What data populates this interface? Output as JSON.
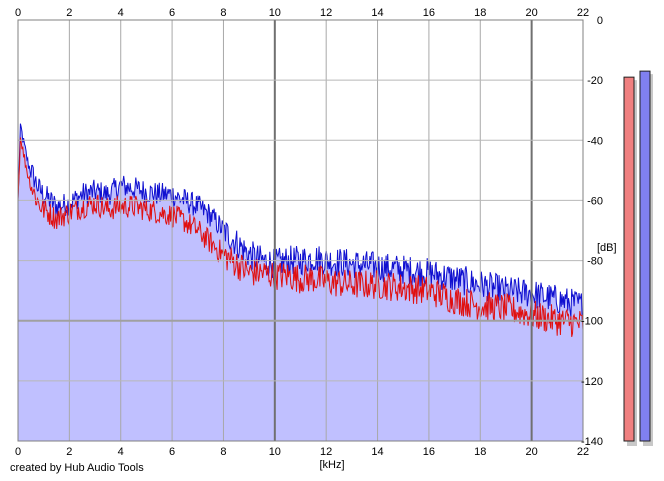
{
  "chart_data": {
    "type": "line",
    "xlabel": "[kHz]",
    "ylabel": "[dB]",
    "xlim": [
      0,
      22
    ],
    "ylim": [
      -140,
      0
    ],
    "x_ticks": [
      0,
      2,
      4,
      6,
      8,
      10,
      12,
      14,
      16,
      18,
      20,
      22
    ],
    "y_ticks": [
      0,
      -20,
      -40,
      -60,
      -80,
      -100,
      -120,
      -140
    ],
    "x_tick_labels": [
      "0",
      "2",
      "4",
      "6",
      "8",
      "10",
      "12",
      "14",
      "16",
      "18",
      "20",
      "22"
    ],
    "y_tick_labels": [
      "0",
      "-20",
      "-40",
      "-60",
      "-80",
      "-100",
      "-120",
      "-140"
    ],
    "grid": true,
    "series": [
      {
        "color": "#1010d0",
        "fill": "#c0c0ff",
        "points": [
          [
            0,
            -60
          ],
          [
            0.1,
            -35
          ],
          [
            0.2,
            -40
          ],
          [
            0.4,
            -48
          ],
          [
            0.6,
            -52
          ],
          [
            0.8,
            -56
          ],
          [
            1.0,
            -58
          ],
          [
            1.5,
            -62
          ],
          [
            2.0,
            -61
          ],
          [
            2.5,
            -58
          ],
          [
            3.0,
            -57
          ],
          [
            3.5,
            -58
          ],
          [
            4.0,
            -55
          ],
          [
            4.5,
            -56
          ],
          [
            5.0,
            -57
          ],
          [
            5.5,
            -58
          ],
          [
            6.0,
            -58
          ],
          [
            6.5,
            -60
          ],
          [
            7.0,
            -62
          ],
          [
            7.5,
            -65
          ],
          [
            8.0,
            -70
          ],
          [
            8.5,
            -74
          ],
          [
            9.0,
            -78
          ],
          [
            9.5,
            -80
          ],
          [
            10.0,
            -81
          ],
          [
            10.5,
            -80
          ],
          [
            11.0,
            -80
          ],
          [
            11.5,
            -79
          ],
          [
            12.0,
            -80
          ],
          [
            13.0,
            -81
          ],
          [
            14.0,
            -82
          ],
          [
            15.0,
            -83
          ],
          [
            16.0,
            -84
          ],
          [
            17.0,
            -86
          ],
          [
            18.0,
            -88
          ],
          [
            19.0,
            -90
          ],
          [
            20.0,
            -91
          ],
          [
            21.0,
            -93
          ],
          [
            22.0,
            -95
          ]
        ]
      },
      {
        "color": "#e01010",
        "points": [
          [
            0,
            -60
          ],
          [
            0.1,
            -38
          ],
          [
            0.2,
            -44
          ],
          [
            0.4,
            -52
          ],
          [
            0.6,
            -57
          ],
          [
            0.8,
            -61
          ],
          [
            1.0,
            -63
          ],
          [
            1.5,
            -66
          ],
          [
            2.0,
            -64
          ],
          [
            2.5,
            -62
          ],
          [
            3.0,
            -61
          ],
          [
            3.5,
            -63
          ],
          [
            4.0,
            -62
          ],
          [
            4.5,
            -62
          ],
          [
            5.0,
            -63
          ],
          [
            5.5,
            -64
          ],
          [
            6.0,
            -65
          ],
          [
            6.5,
            -67
          ],
          [
            7.0,
            -70
          ],
          [
            7.5,
            -74
          ],
          [
            8.0,
            -78
          ],
          [
            8.5,
            -81
          ],
          [
            9.0,
            -84
          ],
          [
            9.5,
            -84
          ],
          [
            10.0,
            -85
          ],
          [
            10.5,
            -85
          ],
          [
            11.0,
            -86
          ],
          [
            11.5,
            -86
          ],
          [
            12.0,
            -87
          ],
          [
            13.0,
            -88
          ],
          [
            14.0,
            -88
          ],
          [
            15.0,
            -89
          ],
          [
            16.0,
            -90
          ],
          [
            17.0,
            -93
          ],
          [
            18.0,
            -95
          ],
          [
            19.0,
            -96
          ],
          [
            20.0,
            -98
          ],
          [
            21.0,
            -100
          ],
          [
            22.0,
            -101
          ]
        ]
      }
    ],
    "level_meters": [
      {
        "color": "#f08080",
        "level_db": -19
      },
      {
        "color": "#8080f0",
        "level_db": -17
      }
    ]
  },
  "credit": "created by Hub Audio Tools"
}
